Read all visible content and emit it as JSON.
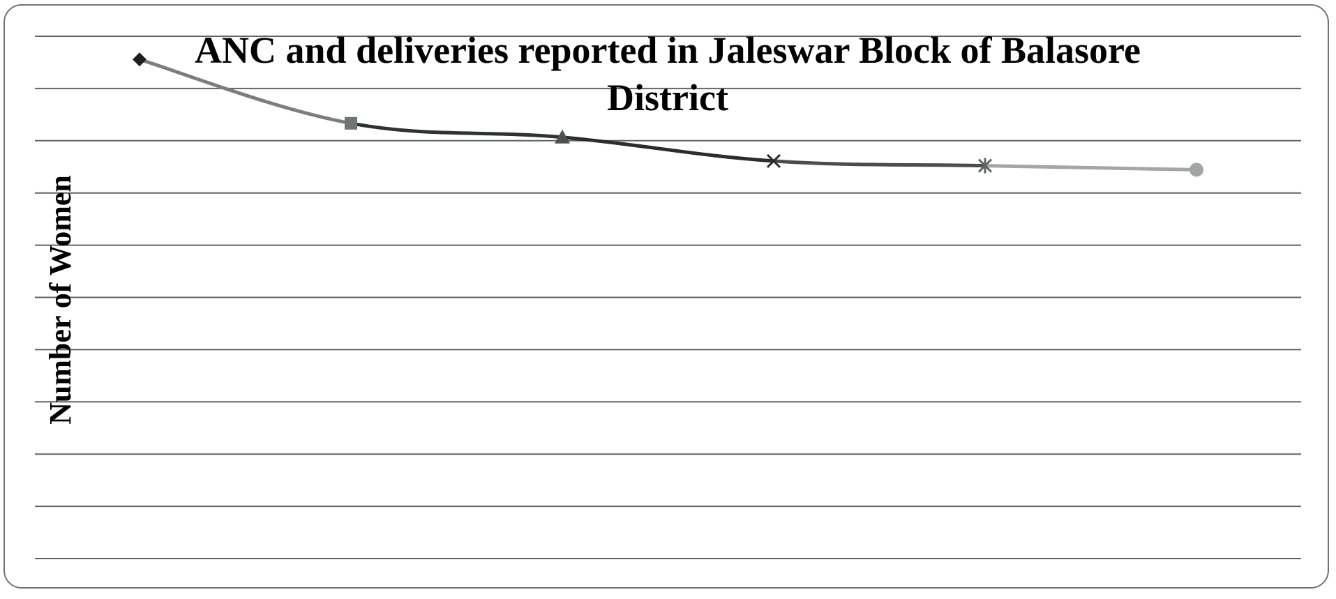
{
  "chart_data": {
    "type": "line",
    "title_line1": "ANC and deliveries reported in Jaleswar Block of Balasore",
    "title_line2": "District",
    "ylabel": "Number of Women",
    "xlabel": "",
    "categories": [
      "",
      "",
      "",
      "",
      "",
      ""
    ],
    "series": [
      {
        "values": [
          86,
          75,
          72.6,
          68.5,
          67.7,
          67
        ],
        "markers": [
          "diamond",
          "square",
          "triangle",
          "x",
          "star",
          "circle"
        ],
        "segment_colors": [
          "#7a7f7a",
          "#2f3330",
          "#2a2d2b",
          "#4a4e4b",
          "#a3a7a4"
        ],
        "marker_colors": [
          "#1d201e",
          "#6f7571",
          "#4d524e",
          "#2b2e2c",
          "#5f6461",
          "#a3a7a4"
        ]
      }
    ],
    "ylim": [
      0,
      90
    ],
    "gridlines": 10,
    "grid": true,
    "legend": "none"
  }
}
